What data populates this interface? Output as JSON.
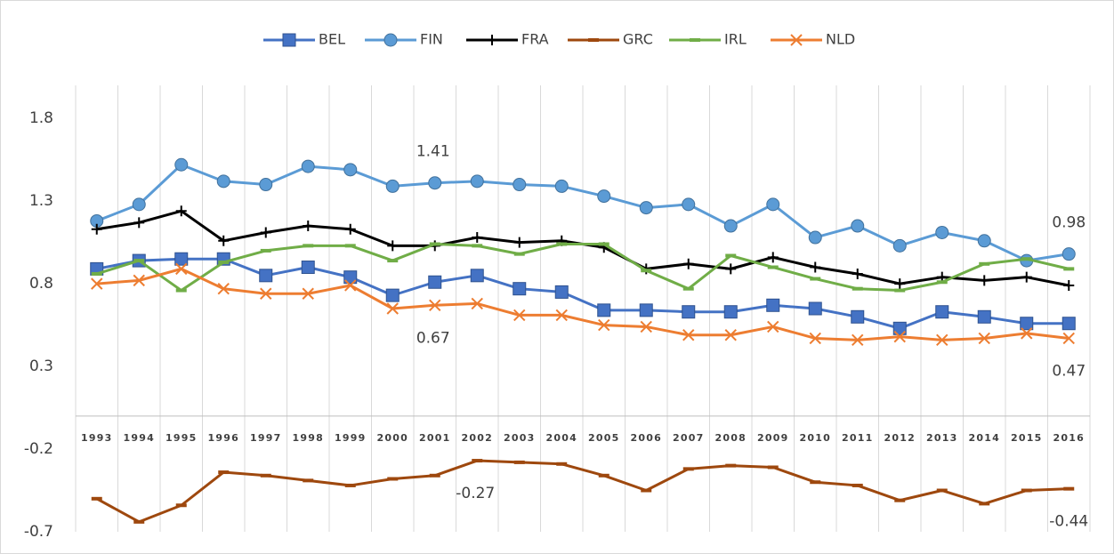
{
  "chart_data": {
    "type": "line",
    "categories": [
      "1993",
      "1994",
      "1995",
      "1996",
      "1997",
      "1998",
      "1999",
      "2000",
      "2001",
      "2002",
      "2003",
      "2004",
      "2005",
      "2006",
      "2007",
      "2008",
      "2009",
      "2010",
      "2011",
      "2012",
      "2013",
      "2014",
      "2015",
      "2016"
    ],
    "ylim": [
      -0.7,
      2.0
    ],
    "yticks": [
      -0.7,
      -0.2,
      0.3,
      0.8,
      1.3,
      1.8
    ],
    "grid": true,
    "legend": "top",
    "series": [
      {
        "name": "BEL",
        "color": "#4472c4",
        "marker": "square",
        "values": [
          0.89,
          0.94,
          0.95,
          0.95,
          0.85,
          0.9,
          0.84,
          0.73,
          0.81,
          0.85,
          0.77,
          0.75,
          0.64,
          0.64,
          0.63,
          0.63,
          0.67,
          0.65,
          0.6,
          0.53,
          0.63,
          0.6,
          0.56,
          0.56
        ]
      },
      {
        "name": "FIN",
        "color": "#5b9bd5",
        "marker": "circle",
        "values": [
          1.18,
          1.28,
          1.52,
          1.42,
          1.4,
          1.51,
          1.49,
          1.39,
          1.41,
          1.42,
          1.4,
          1.39,
          1.33,
          1.26,
          1.28,
          1.15,
          1.28,
          1.08,
          1.15,
          1.03,
          1.11,
          1.06,
          0.94,
          0.98
        ],
        "value_labels": [
          null,
          null,
          null,
          null,
          null,
          null,
          null,
          null,
          "1.41",
          null,
          null,
          null,
          null,
          null,
          null,
          null,
          null,
          null,
          null,
          null,
          null,
          null,
          null,
          "0.98"
        ]
      },
      {
        "name": "FRA",
        "color": "#000000",
        "marker": "plus",
        "values": [
          1.13,
          1.17,
          1.24,
          1.06,
          1.11,
          1.15,
          1.13,
          1.03,
          1.03,
          1.08,
          1.05,
          1.06,
          1.02,
          0.89,
          0.92,
          0.89,
          0.96,
          0.9,
          0.86,
          0.8,
          0.84,
          0.82,
          0.84,
          0.79
        ]
      },
      {
        "name": "GRC",
        "color": "#9e480e",
        "marker": "dash",
        "values": [
          -0.5,
          -0.64,
          -0.54,
          -0.34,
          -0.36,
          -0.39,
          -0.42,
          -0.38,
          -0.36,
          -0.27,
          -0.28,
          -0.29,
          -0.36,
          -0.45,
          -0.32,
          -0.3,
          -0.31,
          -0.4,
          -0.42,
          -0.51,
          -0.45,
          -0.53,
          -0.45,
          -0.44
        ],
        "value_labels": [
          null,
          null,
          null,
          null,
          null,
          null,
          null,
          null,
          null,
          "-0.27",
          null,
          null,
          null,
          null,
          null,
          null,
          null,
          null,
          null,
          null,
          null,
          null,
          null,
          "-0.44"
        ]
      },
      {
        "name": "IRL",
        "color": "#70ad47",
        "marker": "dash",
        "values": [
          0.86,
          0.94,
          0.76,
          0.93,
          1.0,
          1.03,
          1.03,
          0.94,
          1.04,
          1.03,
          0.98,
          1.04,
          1.04,
          0.88,
          0.77,
          0.97,
          0.9,
          0.83,
          0.77,
          0.76,
          0.81,
          0.92,
          0.95,
          0.89
        ]
      },
      {
        "name": "NLD",
        "color": "#ed7d31",
        "marker": "x",
        "values": [
          0.8,
          0.82,
          0.89,
          0.77,
          0.74,
          0.74,
          0.79,
          0.65,
          0.67,
          0.68,
          0.61,
          0.61,
          0.55,
          0.54,
          0.49,
          0.49,
          0.54,
          0.47,
          0.46,
          0.48,
          0.46,
          0.47,
          0.5,
          0.47
        ],
        "value_labels": [
          null,
          null,
          null,
          null,
          null,
          null,
          null,
          null,
          "0.67",
          null,
          null,
          null,
          null,
          null,
          null,
          null,
          null,
          null,
          null,
          null,
          null,
          null,
          null,
          "0.47"
        ]
      }
    ]
  }
}
